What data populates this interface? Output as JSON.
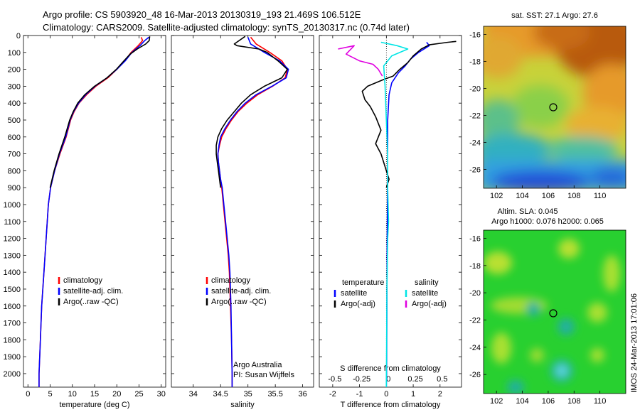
{
  "header": {
    "line1": "Argo profile: CS 5903920_48 16-Mar-2013 20130319_193 21.469S 106.512E",
    "line2": "Climatology: CARS2009. Satellite-adjusted climatology: synTS_20130317.nc (0.74d later)"
  },
  "side_note": "IMOS 24-Mar-2013 17:01:06",
  "colors": {
    "climatology": "#ff0000",
    "satellite": "#0000ff",
    "argo": "#000000",
    "salinity_satellite": "#00e5e5",
    "salinity_argo": "#e000e0"
  },
  "chart_data": [
    {
      "type": "line",
      "id": "temperature",
      "xlabel": "temperature (deg C)",
      "ylabel": "",
      "xlim": [
        -1,
        31
      ],
      "ylim": [
        2080,
        0
      ],
      "xticks": [
        0,
        5,
        10,
        15,
        20,
        25,
        30
      ],
      "yticks": [
        0,
        100,
        200,
        300,
        400,
        500,
        600,
        700,
        800,
        900,
        1000,
        1100,
        1200,
        1300,
        1400,
        1500,
        1600,
        1700,
        1800,
        1900,
        2000
      ],
      "legend": [
        "climatology",
        "satellite-adj. clim.",
        "Argo(..raw -QC)"
      ],
      "legend_position": "center",
      "series": [
        {
          "name": "climatology",
          "color": "#ff0000",
          "points": [
            [
              25.5,
              10
            ],
            [
              25.8,
              30
            ],
            [
              24.8,
              60
            ],
            [
              23.2,
              100
            ],
            [
              21.8,
              150
            ],
            [
              20.0,
              200
            ],
            [
              18.0,
              250
            ],
            [
              15.3,
              300
            ],
            [
              13.2,
              350
            ],
            [
              11.5,
              400
            ],
            [
              10.4,
              450
            ],
            [
              9.6,
              500
            ],
            [
              8.6,
              600
            ],
            [
              7.2,
              700
            ],
            [
              6.0,
              800
            ],
            [
              5.1,
              900
            ],
            [
              4.6,
              1000
            ],
            [
              4.1,
              1200
            ],
            [
              3.6,
              1400
            ],
            [
              3.1,
              1600
            ],
            [
              2.8,
              1800
            ],
            [
              2.5,
              2000
            ],
            [
              2.5,
              2080
            ]
          ]
        },
        {
          "name": "satellite-adj. clim.",
          "color": "#0000ff",
          "points": [
            [
              27.2,
              10
            ],
            [
              26.3,
              30
            ],
            [
              25.2,
              60
            ],
            [
              23.4,
              100
            ],
            [
              21.9,
              150
            ],
            [
              20.0,
              200
            ],
            [
              17.8,
              250
            ],
            [
              15.1,
              300
            ],
            [
              13.0,
              350
            ],
            [
              11.4,
              400
            ],
            [
              10.3,
              450
            ],
            [
              9.5,
              500
            ],
            [
              8.5,
              600
            ],
            [
              7.1,
              700
            ],
            [
              6.0,
              800
            ],
            [
              5.1,
              900
            ],
            [
              4.6,
              1000
            ],
            [
              4.1,
              1200
            ],
            [
              3.6,
              1400
            ],
            [
              3.1,
              1600
            ],
            [
              2.8,
              1800
            ],
            [
              2.5,
              2000
            ],
            [
              2.5,
              2080
            ]
          ]
        },
        {
          "name": "Argo(..raw -QC)",
          "color": "#000000",
          "points": [
            [
              27.4,
              5
            ],
            [
              27.3,
              30
            ],
            [
              26.5,
              50
            ],
            [
              24.6,
              80
            ],
            [
              23.0,
              110
            ],
            [
              21.6,
              150
            ],
            [
              19.9,
              200
            ],
            [
              17.8,
              250
            ],
            [
              15.0,
              300
            ],
            [
              12.8,
              350
            ],
            [
              11.2,
              400
            ],
            [
              10.2,
              450
            ],
            [
              9.4,
              500
            ],
            [
              8.3,
              600
            ],
            [
              7.0,
              700
            ],
            [
              5.9,
              800
            ],
            [
              5.0,
              900
            ]
          ]
        }
      ]
    },
    {
      "type": "line",
      "id": "salinity",
      "xlabel": "salinity",
      "ylabel": "",
      "xlim": [
        33.6,
        36.2
      ],
      "ylim": [
        2080,
        0
      ],
      "xticks": [
        34,
        34.5,
        35,
        35.5,
        36
      ],
      "yticks": [
        0,
        100,
        200,
        300,
        400,
        500,
        600,
        700,
        800,
        900,
        1000,
        1100,
        1200,
        1300,
        1400,
        1500,
        1600,
        1700,
        1800,
        1900,
        2000
      ],
      "legend": [
        "climatology",
        "satellite-adj. clim.",
        "Argo(..raw -QC)"
      ],
      "legend_position": "center",
      "annotation": [
        "Argo Australia",
        "PI: Susan Wijffels"
      ],
      "series": [
        {
          "name": "climatology",
          "color": "#ff0000",
          "points": [
            [
              35.05,
              10
            ],
            [
              35.15,
              50
            ],
            [
              35.4,
              100
            ],
            [
              35.62,
              150
            ],
            [
              35.72,
              200
            ],
            [
              35.68,
              250
            ],
            [
              35.45,
              300
            ],
            [
              35.18,
              350
            ],
            [
              34.98,
              400
            ],
            [
              34.82,
              450
            ],
            [
              34.7,
              500
            ],
            [
              34.6,
              550
            ],
            [
              34.52,
              600
            ],
            [
              34.48,
              650
            ],
            [
              34.45,
              700
            ],
            [
              34.46,
              750
            ],
            [
              34.48,
              800
            ],
            [
              34.5,
              850
            ],
            [
              34.52,
              900
            ],
            [
              34.55,
              1000
            ],
            [
              34.58,
              1100
            ],
            [
              34.61,
              1200
            ],
            [
              34.64,
              1300
            ],
            [
              34.66,
              1400
            ],
            [
              34.68,
              1600
            ],
            [
              34.7,
              1800
            ],
            [
              34.71,
              2000
            ],
            [
              34.71,
              2080
            ]
          ]
        },
        {
          "name": "satellite-adj. clim.",
          "color": "#0000ff",
          "points": [
            [
              35.0,
              10
            ],
            [
              35.05,
              50
            ],
            [
              35.3,
              100
            ],
            [
              35.58,
              150
            ],
            [
              35.74,
              200
            ],
            [
              35.7,
              250
            ],
            [
              35.44,
              300
            ],
            [
              35.15,
              350
            ],
            [
              34.95,
              400
            ],
            [
              34.8,
              450
            ],
            [
              34.68,
              500
            ],
            [
              34.58,
              550
            ],
            [
              34.5,
              600
            ],
            [
              34.47,
              650
            ],
            [
              34.45,
              700
            ],
            [
              34.46,
              750
            ],
            [
              34.48,
              800
            ],
            [
              34.5,
              850
            ],
            [
              34.53,
              900
            ],
            [
              34.56,
              1000
            ],
            [
              34.59,
              1100
            ],
            [
              34.62,
              1200
            ],
            [
              34.65,
              1300
            ],
            [
              34.67,
              1400
            ],
            [
              34.69,
              1600
            ],
            [
              34.7,
              1800
            ],
            [
              34.71,
              2000
            ],
            [
              34.71,
              2080
            ]
          ]
        },
        {
          "name": "Argo(..raw -QC)",
          "color": "#000000",
          "points": [
            [
              34.95,
              5
            ],
            [
              34.75,
              50
            ],
            [
              34.8,
              60
            ],
            [
              35.2,
              80
            ],
            [
              35.35,
              100
            ],
            [
              35.55,
              150
            ],
            [
              35.72,
              200
            ],
            [
              35.62,
              250
            ],
            [
              35.3,
              300
            ],
            [
              35.05,
              350
            ],
            [
              34.88,
              400
            ],
            [
              34.75,
              450
            ],
            [
              34.62,
              500
            ],
            [
              34.52,
              550
            ],
            [
              34.45,
              600
            ],
            [
              34.42,
              650
            ],
            [
              34.42,
              700
            ],
            [
              34.44,
              750
            ],
            [
              34.46,
              800
            ],
            [
              34.48,
              850
            ],
            [
              34.5,
              900
            ]
          ]
        }
      ]
    },
    {
      "type": "line",
      "id": "differences",
      "xlabel": "T difference from climatology",
      "top_label": "S difference from climatology",
      "ylabel": "",
      "xlim": [
        -2.5,
        2.8
      ],
      "ylim": [
        2080,
        0
      ],
      "xticks": [
        -2,
        -1,
        0,
        1,
        2
      ],
      "top_ticks": [
        "-0.5",
        "-0.25",
        "0",
        "0.25",
        "0.5"
      ],
      "top_tick_positions": [
        -2,
        -1,
        0,
        1,
        2
      ],
      "yticks": [
        0,
        100,
        200,
        300,
        400,
        500,
        600,
        700,
        800,
        900,
        1000,
        1100,
        1200,
        1300,
        1400,
        1500,
        1600,
        1700,
        1800,
        1900,
        2000
      ],
      "legend_titles": [
        "temperature",
        "salinity"
      ],
      "legend": [
        "satellite",
        "Argo(-adj)",
        "satellite",
        "Argo(-adj)"
      ],
      "legend_position": "center",
      "series": [
        {
          "name": "satellite",
          "group": "temperature",
          "color": "#0000ff",
          "points": [
            [
              1.5,
              40
            ],
            [
              1.6,
              60
            ],
            [
              1.2,
              100
            ],
            [
              0.9,
              140
            ],
            [
              0.7,
              180
            ],
            [
              0.45,
              220
            ],
            [
              0.2,
              280
            ],
            [
              0.1,
              350
            ],
            [
              0.05,
              500
            ],
            [
              0.05,
              800
            ],
            [
              0.03,
              1200
            ],
            [
              0.02,
              1600
            ],
            [
              0.01,
              2000
            ],
            [
              0.0,
              2080
            ]
          ]
        },
        {
          "name": "Argo(-adj)",
          "group": "temperature",
          "color": "#000000",
          "points": [
            [
              2.6,
              35
            ],
            [
              2.3,
              40
            ],
            [
              1.6,
              55
            ],
            [
              1.3,
              80
            ],
            [
              1.0,
              120
            ],
            [
              0.8,
              160
            ],
            [
              0.5,
              200
            ],
            [
              0.25,
              240
            ],
            [
              -0.1,
              260
            ],
            [
              -0.7,
              300
            ],
            [
              -0.9,
              330
            ],
            [
              -0.8,
              380
            ],
            [
              -0.6,
              420
            ],
            [
              -0.4,
              480
            ],
            [
              -0.2,
              560
            ],
            [
              -0.4,
              640
            ],
            [
              -0.2,
              700
            ],
            [
              0.0,
              800
            ],
            [
              0.1,
              850
            ],
            [
              0.0,
              900
            ]
          ]
        },
        {
          "name": "satellite",
          "group": "salinity",
          "color": "#00e5e5",
          "points": [
            [
              -0.2,
              40
            ],
            [
              0.4,
              60
            ],
            [
              0.8,
              80
            ],
            [
              0.2,
              120
            ],
            [
              -0.1,
              180
            ],
            [
              -0.05,
              300
            ],
            [
              0.0,
              500
            ],
            [
              0.05,
              700
            ],
            [
              0.05,
              900
            ],
            [
              0.08,
              1100
            ],
            [
              0.05,
              1200
            ],
            [
              0.02,
              1500
            ],
            [
              0.01,
              1800
            ],
            [
              0.0,
              2080
            ]
          ]
        },
        {
          "name": "Argo(-adj)",
          "group": "salinity",
          "color": "#e000e0",
          "points": [
            [
              -1.8,
              80
            ],
            [
              -1.2,
              60
            ],
            [
              -1.5,
              110
            ],
            [
              -1.0,
              150
            ],
            [
              -0.5,
              170
            ],
            [
              -0.3,
              200
            ],
            [
              -0.15,
              240
            ]
          ]
        }
      ]
    },
    {
      "type": "heatmap",
      "id": "sst-map",
      "title": "sat. SST: 27.1  Argo: 27.6",
      "xticks": [
        102,
        104,
        106,
        108,
        110
      ],
      "yticks": [
        -16,
        -18,
        -20,
        -22,
        -24,
        -26
      ],
      "xlim": [
        101,
        112
      ],
      "ylim": [
        -27.4,
        -15.4
      ],
      "marker": [
        106.5,
        -21.47
      ],
      "description_colors": [
        "#b85a10",
        "#e69a2a",
        "#c8d23a",
        "#8ad04a",
        "#40c0a0",
        "#30a0e0",
        "#2040d0"
      ]
    },
    {
      "type": "heatmap",
      "id": "sla-map",
      "title": "Altim. SLA: 0.045",
      "subtitle": "Argo h1000: 0.076 h2000: 0.065",
      "xticks": [
        102,
        104,
        106,
        108,
        110
      ],
      "yticks": [
        -16,
        -18,
        -20,
        -22,
        -24,
        -26
      ],
      "xlim": [
        101,
        112
      ],
      "ylim": [
        -27.4,
        -15.4
      ],
      "marker": [
        106.5,
        -21.47
      ]
    }
  ]
}
